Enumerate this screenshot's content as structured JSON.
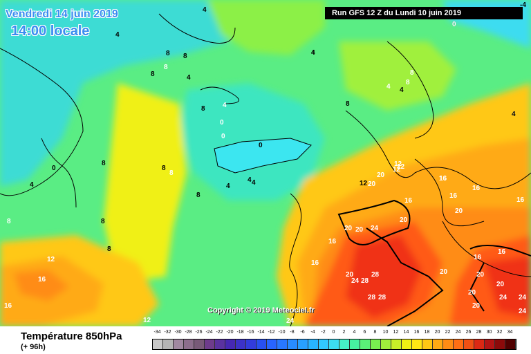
{
  "run_info": "Run GFS 12 Z du Lundi 10 juin 2019",
  "valid_date": "Vendredi 14 juin 2019",
  "valid_time": "14:00 locale",
  "copyright": "Copyright © 2019 Meteociel.fr",
  "variable": "Température 850hPa",
  "lead_time": "(+ 96h)",
  "scale": {
    "values": [
      "-34",
      "-32",
      "-30",
      "-28",
      "-26",
      "-24",
      "-22",
      "-20",
      "-18",
      "-16",
      "-14",
      "-12",
      "-10",
      "-8",
      "-6",
      "-4",
      "-2",
      "0",
      "2",
      "4",
      "6",
      "8",
      "10",
      "12",
      "14",
      "16",
      "18",
      "20",
      "22",
      "24",
      "26",
      "28",
      "30",
      "32",
      "34"
    ],
    "colors": [
      "#c8c8c8",
      "#b4b4b4",
      "#a088a0",
      "#8c6e8c",
      "#785a78",
      "#6e3c8c",
      "#5a32a0",
      "#4628b4",
      "#3c32c8",
      "#323cdc",
      "#2850f0",
      "#2864ff",
      "#2878ff",
      "#288cff",
      "#28a0ff",
      "#28b4ff",
      "#32c8ff",
      "#3cdcf0",
      "#46f0c8",
      "#46f0a0",
      "#5af078",
      "#78f050",
      "#a0f03c",
      "#c8f028",
      "#f0f014",
      "#ffe614",
      "#ffc814",
      "#ffaa14",
      "#ff8c14",
      "#ff6e14",
      "#f05014",
      "#dc2814",
      "#b41414",
      "#8c0a0a",
      "#500000"
    ]
  },
  "map_labels": [
    {
      "t": "4",
      "color": "#000"
    },
    {
      "t": "4",
      "color": "#000"
    },
    {
      "t": "0",
      "color": "#000"
    },
    {
      "t": "4",
      "color": "#000"
    },
    {
      "t": "8",
      "color": "#000"
    },
    {
      "t": "8",
      "color": "#000"
    },
    {
      "t": "8",
      "color": "#fff"
    },
    {
      "t": "4",
      "color": "#000"
    },
    {
      "t": "8",
      "color": "#000"
    },
    {
      "t": "4",
      "color": "#fff"
    },
    {
      "t": "0",
      "color": "#fff"
    },
    {
      "t": "0",
      "color": "#fff"
    },
    {
      "t": "0",
      "color": "#000"
    },
    {
      "t": "4",
      "color": "#000"
    },
    {
      "t": "8",
      "color": "#000"
    },
    {
      "t": "0",
      "color": "#000"
    },
    {
      "t": "4",
      "color": "#000"
    },
    {
      "t": "8",
      "color": "#000"
    },
    {
      "t": "8",
      "color": "#000"
    },
    {
      "t": "8",
      "color": "#fff"
    },
    {
      "t": "8",
      "color": "#000"
    },
    {
      "t": "8",
      "color": "#000"
    },
    {
      "t": "4",
      "color": "#000"
    },
    {
      "t": "4",
      "color": "#000"
    },
    {
      "t": "8",
      "color": "#000"
    },
    {
      "t": "8",
      "color": "#fff"
    },
    {
      "t": "4",
      "color": "#fff"
    },
    {
      "t": "4",
      "color": "#000"
    },
    {
      "t": "8",
      "color": "#000"
    },
    {
      "t": "4",
      "color": "#fff"
    },
    {
      "t": "12",
      "color": "#fff"
    },
    {
      "t": "12",
      "color": "#fff"
    },
    {
      "t": "16",
      "color": "#fff"
    },
    {
      "t": "16",
      "color": "#fff"
    },
    {
      "t": "16",
      "color": "#fff"
    },
    {
      "t": "20",
      "color": "#fff"
    },
    {
      "t": "20",
      "color": "#fff"
    },
    {
      "t": "20",
      "color": "#fff"
    },
    {
      "t": "16",
      "color": "#fff"
    },
    {
      "t": "20",
      "color": "#fff"
    },
    {
      "t": "16",
      "color": "#fff"
    },
    {
      "t": "16",
      "color": "#fff"
    },
    {
      "t": "20",
      "color": "#fff"
    },
    {
      "t": "24",
      "color": "#fff"
    },
    {
      "t": "28",
      "color": "#fff"
    },
    {
      "t": "28",
      "color": "#fff"
    },
    {
      "t": "28",
      "color": "#fff"
    },
    {
      "t": "28",
      "color": "#fff"
    },
    {
      "t": "24",
      "color": "#fff"
    },
    {
      "t": "16",
      "color": "#fff"
    },
    {
      "t": "20",
      "color": "#fff"
    },
    {
      "t": "20",
      "color": "#fff"
    },
    {
      "t": "20",
      "color": "#fff"
    },
    {
      "t": "20",
      "color": "#fff"
    },
    {
      "t": "20",
      "color": "#fff"
    },
    {
      "t": "24",
      "color": "#fff"
    },
    {
      "t": "24",
      "color": "#fff"
    },
    {
      "t": "24",
      "color": "#fff"
    },
    {
      "t": "12",
      "color": "#fff"
    },
    {
      "t": "12",
      "color": "#fff"
    },
    {
      "t": "16",
      "color": "#fff"
    },
    {
      "t": "16",
      "color": "#fff"
    },
    {
      "t": "12",
      "color": "#000"
    },
    {
      "t": "16",
      "color": "#fff"
    },
    {
      "t": "20",
      "color": "#fff"
    },
    {
      "t": "24",
      "color": "#fff"
    },
    {
      "t": "16",
      "color": "#fff"
    },
    {
      "t": "20",
      "color": "#fff"
    },
    {
      "t": "-4",
      "color": "#000"
    },
    {
      "t": "0",
      "color": "#fff"
    },
    {
      "t": "4",
      "color": "#000"
    },
    {
      "t": "4",
      "color": "#000"
    },
    {
      "t": "8",
      "color": "#fff"
    },
    {
      "t": "8",
      "color": "#fff"
    },
    {
      "t": "12",
      "color": "#fff"
    },
    {
      "t": "16",
      "color": "#fff"
    }
  ]
}
